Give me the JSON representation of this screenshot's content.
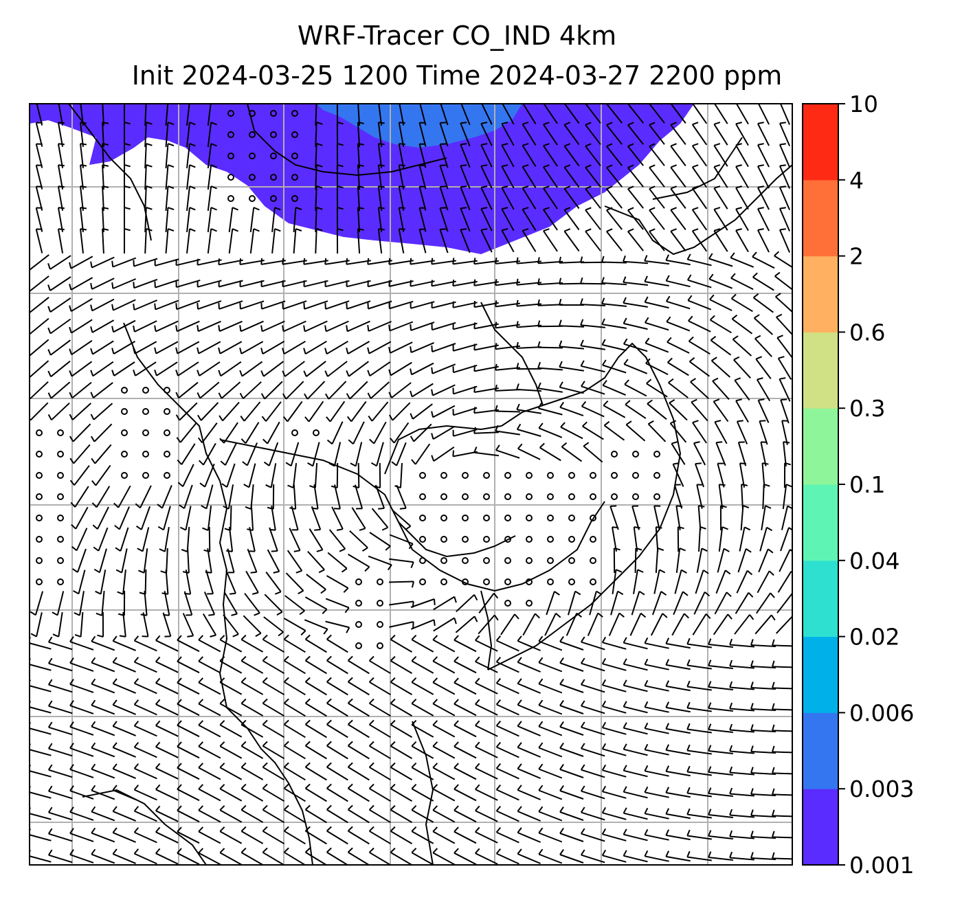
{
  "title": {
    "line1": "WRF-Tracer CO_IND 4km",
    "line2": "Init 2024-03-25 1200 Time 2024-03-27 2200 ppm"
  },
  "colorbar": {
    "levels": [
      "0.001",
      "0.003",
      "0.006",
      "0.02",
      "0.04",
      "0.1",
      "0.3",
      "0.6",
      "2",
      "4",
      "10"
    ],
    "colors": [
      "#5b2cff",
      "#3476f0",
      "#00b0e8",
      "#2ee0d0",
      "#5ef5b4",
      "#8ef59a",
      "#d0e084",
      "#ffb060",
      "#ff7038",
      "#ff2a14"
    ]
  },
  "map": {
    "field": "CO_IND tracer concentration with wind barbs",
    "plume_color": "#5b2cff",
    "plume_core_color": "#3476f0",
    "gridline_color": "#b0b0b0",
    "wind_symbol": "barbs",
    "calm_symbol": "circles"
  }
}
